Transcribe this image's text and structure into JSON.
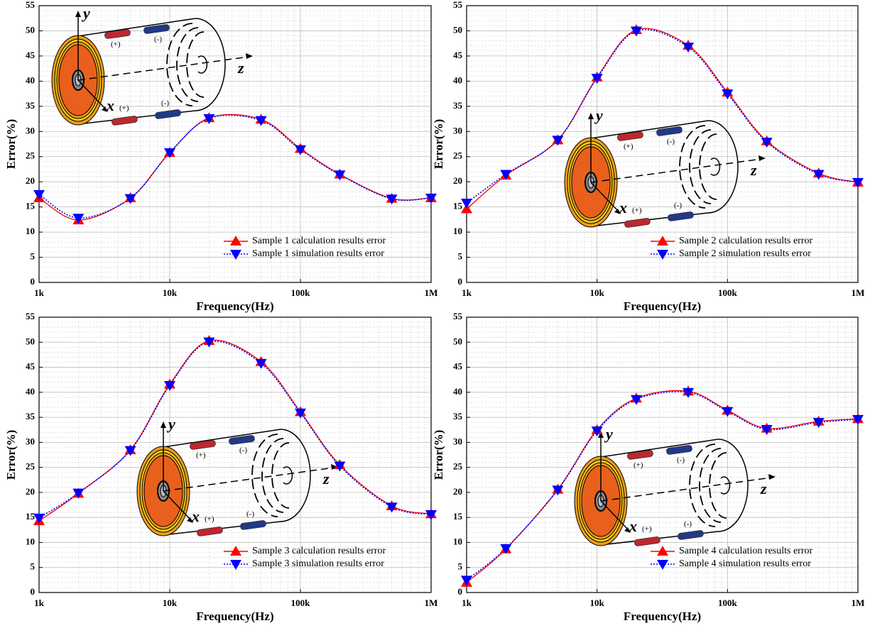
{
  "chart_data": [
    {
      "type": "line",
      "xlabel": "Frequency(Hz)",
      "ylabel": "Error(%)",
      "xscale": "log",
      "x": [
        1000,
        2000,
        5000,
        10000,
        20000,
        50000,
        100000,
        200000,
        500000,
        1000000
      ],
      "xlim": [
        1000,
        1000000
      ],
      "xticks": [
        {
          "value": 1000,
          "label": "1k"
        },
        {
          "value": 10000,
          "label": "10k"
        },
        {
          "value": 100000,
          "label": "100k"
        },
        {
          "value": 1000000,
          "label": "1M"
        }
      ],
      "ylim": [
        0,
        55
      ],
      "yticks": [
        0,
        5,
        10,
        15,
        20,
        25,
        30,
        35,
        40,
        45,
        50,
        55
      ],
      "grid": true,
      "legend": "lower right",
      "series": [
        {
          "name": "Sample 1 calculation results error",
          "color": "#ff0000",
          "marker": "triangle-up",
          "linestyle": "solid",
          "values": [
            16.8,
            12.4,
            16.8,
            25.8,
            32.7,
            32.4,
            26.6,
            21.5,
            16.7,
            16.8
          ]
        },
        {
          "name": "Sample 1 simulation results error",
          "color": "#0000ff",
          "marker": "triangle-down",
          "linestyle": "dotted",
          "values": [
            17.5,
            12.8,
            16.7,
            25.8,
            32.6,
            32.2,
            26.4,
            21.4,
            16.6,
            16.8
          ]
        }
      ],
      "annotations": [
        "y",
        "x",
        "z",
        "(+)",
        "(-)",
        "(+)",
        "(-)"
      ]
    },
    {
      "type": "line",
      "xlabel": "Frequency(Hz)",
      "ylabel": "Error(%)",
      "xscale": "log",
      "x": [
        1000,
        2000,
        5000,
        10000,
        20000,
        50000,
        100000,
        200000,
        500000,
        1000000
      ],
      "xlim": [
        1000,
        1000000
      ],
      "xticks": [
        {
          "value": 1000,
          "label": "1k"
        },
        {
          "value": 10000,
          "label": "10k"
        },
        {
          "value": 100000,
          "label": "100k"
        },
        {
          "value": 1000000,
          "label": "1M"
        }
      ],
      "ylim": [
        0,
        55
      ],
      "yticks": [
        0,
        5,
        10,
        15,
        20,
        25,
        30,
        35,
        40,
        45,
        50,
        55
      ],
      "grid": true,
      "legend": "lower right",
      "series": [
        {
          "name": "Sample 2 calculation results error",
          "color": "#ff0000",
          "marker": "triangle-up",
          "linestyle": "solid",
          "values": [
            14.6,
            21.3,
            28.3,
            40.8,
            50.2,
            47.1,
            37.8,
            28.1,
            21.7,
            19.9
          ]
        },
        {
          "name": "Sample 2 simulation results error",
          "color": "#0000ff",
          "marker": "triangle-down",
          "linestyle": "dotted",
          "values": [
            15.8,
            21.5,
            28.3,
            40.6,
            50.0,
            46.8,
            37.5,
            27.9,
            21.5,
            19.9
          ]
        }
      ],
      "annotations": [
        "y",
        "x",
        "z",
        "(+)",
        "(-)",
        "(+)",
        "(-)"
      ]
    },
    {
      "type": "line",
      "xlabel": "Frequency(Hz)",
      "ylabel": "Error(%)",
      "xscale": "log",
      "x": [
        1000,
        2000,
        5000,
        10000,
        20000,
        50000,
        100000,
        200000,
        500000,
        1000000
      ],
      "xlim": [
        1000,
        1000000
      ],
      "xticks": [
        {
          "value": 1000,
          "label": "1k"
        },
        {
          "value": 10000,
          "label": "10k"
        },
        {
          "value": 100000,
          "label": "100k"
        },
        {
          "value": 1000000,
          "label": "1M"
        }
      ],
      "ylim": [
        0,
        55
      ],
      "yticks": [
        0,
        5,
        10,
        15,
        20,
        25,
        30,
        35,
        40,
        45,
        50,
        55
      ],
      "grid": true,
      "legend": "lower right",
      "series": [
        {
          "name": "Sample 3 calculation results error",
          "color": "#ff0000",
          "marker": "triangle-up",
          "linestyle": "solid",
          "values": [
            14.3,
            19.8,
            28.5,
            41.6,
            50.3,
            46.1,
            36.1,
            25.5,
            17.3,
            15.7
          ]
        },
        {
          "name": "Sample 3 simulation results error",
          "color": "#0000ff",
          "marker": "triangle-down",
          "linestyle": "dotted",
          "values": [
            14.9,
            19.9,
            28.4,
            41.4,
            50.1,
            45.8,
            35.9,
            25.3,
            17.1,
            15.6
          ]
        }
      ],
      "annotations": [
        "y",
        "x",
        "z",
        "(+)",
        "(-)",
        "(+)",
        "(-)"
      ]
    },
    {
      "type": "line",
      "xlabel": "Frequency(Hz)",
      "ylabel": "Error(%)",
      "xscale": "log",
      "x": [
        1000,
        2000,
        5000,
        10000,
        20000,
        50000,
        100000,
        200000,
        500000,
        1000000
      ],
      "xlim": [
        1000,
        1000000
      ],
      "xticks": [
        {
          "value": 1000,
          "label": "1k"
        },
        {
          "value": 10000,
          "label": "10k"
        },
        {
          "value": 100000,
          "label": "100k"
        },
        {
          "value": 1000000,
          "label": "1M"
        }
      ],
      "ylim": [
        0,
        55
      ],
      "yticks": [
        0,
        5,
        10,
        15,
        20,
        25,
        30,
        35,
        40,
        45,
        50,
        55
      ],
      "grid": true,
      "legend": "lower right",
      "series": [
        {
          "name": "Sample 4 calculation results error",
          "color": "#ff0000",
          "marker": "triangle-up",
          "linestyle": "solid",
          "values": [
            2.0,
            8.7,
            20.6,
            32.5,
            38.8,
            40.2,
            36.4,
            32.8,
            34.2,
            34.7
          ]
        },
        {
          "name": "Sample 4 simulation results error",
          "color": "#0000ff",
          "marker": "triangle-down",
          "linestyle": "dotted",
          "values": [
            2.5,
            8.8,
            20.5,
            32.3,
            38.6,
            40.0,
            36.2,
            32.6,
            34.0,
            34.6
          ]
        }
      ],
      "annotations": [
        "y",
        "x",
        "z",
        "(+)",
        "(-)",
        "(+)",
        "(-)"
      ]
    }
  ]
}
